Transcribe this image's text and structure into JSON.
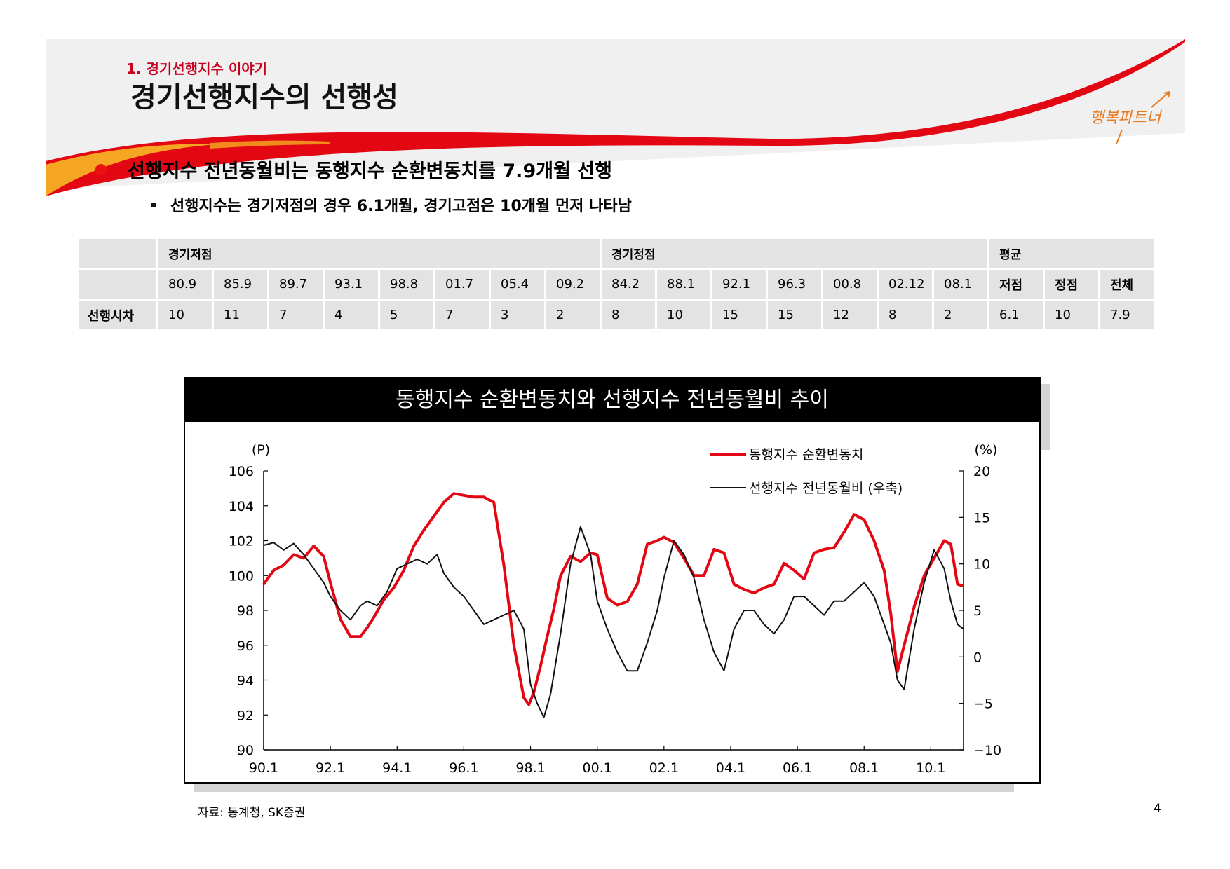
{
  "header": {
    "section": "1. 경기선행지수 이야기",
    "title": "경기선행지수의 선행성",
    "logo_text": "행복파트너"
  },
  "bullets": {
    "main": "선행지수 전년동월비는 동행지수 순환변동치를 7.9개월 선행",
    "sub": "선행지수는 경기저점의 경우 6.1개월, 경기고점은 10개월 먼저 나타남"
  },
  "colors": {
    "accent_red": "#e30613",
    "banner_orange": "#f5a623",
    "table_bg": "#e3e3e3"
  },
  "lead_table": {
    "group_trough": "경기저점",
    "group_peak": "경기정점",
    "group_avg": "평균",
    "row_label": "선행시차",
    "trough_dates": [
      "80.9",
      "85.9",
      "89.7",
      "93.1",
      "98.8",
      "01.7",
      "05.4",
      "09.2"
    ],
    "peak_dates": [
      "84.2",
      "88.1",
      "92.1",
      "96.3",
      "00.8",
      "02.12",
      "08.1"
    ],
    "avg_labels": [
      "저점",
      "정점",
      "전체"
    ],
    "trough_values": [
      "10",
      "11",
      "7",
      "4",
      "5",
      "7",
      "3",
      "2"
    ],
    "peak_values": [
      "8",
      "10",
      "15",
      "15",
      "12",
      "8",
      "2"
    ],
    "avg_values": [
      "6.1",
      "10",
      "7.9"
    ]
  },
  "chart_data": {
    "type": "line",
    "title": "동행지수 순환변동치와 선행지수 전년동월비 추이",
    "left_unit": "(P)",
    "right_unit": "(%)",
    "ylim_left": [
      90,
      106
    ],
    "ylim_right": [
      -10,
      20
    ],
    "yticks_left": [
      "106",
      "104",
      "102",
      "100",
      "98",
      "96",
      "94",
      "92",
      "90"
    ],
    "yticks_right": [
      "20",
      "15",
      "10",
      "5",
      "0",
      "−5",
      "−10"
    ],
    "xticks": [
      "90.1",
      "92.1",
      "94.1",
      "96.1",
      "98.1",
      "00.1",
      "02.1",
      "04.1",
      "06.1",
      "08.1",
      "10.1"
    ],
    "xlim": [
      1990.0,
      2010.98
    ],
    "legend_position": "top-right",
    "series": [
      {
        "name": "동행지수 순환변동치",
        "axis": "left",
        "color": "#e30613",
        "x": [
          1990.0,
          1990.3,
          1990.6,
          1990.9,
          1991.2,
          1991.5,
          1991.8,
          1992.0,
          1992.3,
          1992.6,
          1992.9,
          1993.1,
          1993.3,
          1993.6,
          1993.9,
          1994.2,
          1994.5,
          1994.8,
          1995.1,
          1995.4,
          1995.7,
          1996.0,
          1996.3,
          1996.6,
          1996.9,
          1997.2,
          1997.5,
          1997.8,
          1997.95,
          1998.1,
          1998.3,
          1998.5,
          1998.7,
          1998.9,
          1999.2,
          1999.5,
          1999.8,
          2000.0,
          2000.3,
          2000.6,
          2000.9,
          2001.2,
          2001.5,
          2001.8,
          2002.0,
          2002.3,
          2002.6,
          2002.9,
          2003.2,
          2003.5,
          2003.8,
          2004.1,
          2004.4,
          2004.7,
          2005.0,
          2005.3,
          2005.6,
          2005.9,
          2006.2,
          2006.5,
          2006.8,
          2007.1,
          2007.4,
          2007.7,
          2008.0,
          2008.3,
          2008.6,
          2008.8,
          2009.0,
          2009.2,
          2009.5,
          2009.8,
          2010.1,
          2010.4,
          2010.6,
          2010.8,
          2010.98
        ],
        "y": [
          99.5,
          100.3,
          100.6,
          101.2,
          101.0,
          101.7,
          101.1,
          99.6,
          97.5,
          96.5,
          96.5,
          97.0,
          97.6,
          98.6,
          99.3,
          100.3,
          101.7,
          102.6,
          103.4,
          104.2,
          104.7,
          104.6,
          104.5,
          104.5,
          104.2,
          100.6,
          96.0,
          93.0,
          92.6,
          93.3,
          94.8,
          96.5,
          98.1,
          100.0,
          101.1,
          100.8,
          101.3,
          101.2,
          98.7,
          98.3,
          98.5,
          99.5,
          101.8,
          102.0,
          102.2,
          101.9,
          101.0,
          100.0,
          100.0,
          101.5,
          101.3,
          99.5,
          99.2,
          99.0,
          99.3,
          99.5,
          100.7,
          100.3,
          99.8,
          101.3,
          101.5,
          101.6,
          102.5,
          103.5,
          103.2,
          102.0,
          100.3,
          97.8,
          94.5,
          96.0,
          98.2,
          100.0,
          101.0,
          102.0,
          101.8,
          99.5,
          99.4
        ]
      },
      {
        "name": "선행지수 전년동월비 (우축)",
        "axis": "right",
        "color": "#111111",
        "x": [
          1990.0,
          1990.3,
          1990.6,
          1990.9,
          1991.2,
          1991.5,
          1991.8,
          1992.0,
          1992.3,
          1992.6,
          1992.9,
          1993.1,
          1993.4,
          1993.7,
          1994.0,
          1994.3,
          1994.6,
          1994.9,
          1995.2,
          1995.4,
          1995.7,
          1996.0,
          1996.3,
          1996.6,
          1996.9,
          1997.2,
          1997.5,
          1997.8,
          1998.0,
          1998.2,
          1998.4,
          1998.6,
          1998.9,
          1999.2,
          1999.5,
          1999.8,
          2000.0,
          2000.3,
          2000.6,
          2000.9,
          2001.2,
          2001.5,
          2001.8,
          2002.0,
          2002.3,
          2002.6,
          2002.9,
          2003.2,
          2003.5,
          2003.8,
          2004.1,
          2004.4,
          2004.7,
          2005.0,
          2005.3,
          2005.6,
          2005.9,
          2006.2,
          2006.5,
          2006.8,
          2007.1,
          2007.4,
          2007.7,
          2008.0,
          2008.3,
          2008.6,
          2008.8,
          2009.0,
          2009.2,
          2009.5,
          2009.8,
          2010.1,
          2010.4,
          2010.6,
          2010.8,
          2010.98
        ],
        "y": [
          12.0,
          12.3,
          11.5,
          12.2,
          11.0,
          9.5,
          8.0,
          6.5,
          5.0,
          4.0,
          5.5,
          6.0,
          5.5,
          7.0,
          9.5,
          10.0,
          10.5,
          10.0,
          11.0,
          9.0,
          7.5,
          6.5,
          5.0,
          3.5,
          4.0,
          4.5,
          5.0,
          3.0,
          -3.0,
          -5.0,
          -6.5,
          -4.0,
          2.5,
          10.0,
          14.0,
          11.0,
          6.0,
          3.0,
          0.5,
          -1.5,
          -1.5,
          1.5,
          5.0,
          8.5,
          12.5,
          11.0,
          8.5,
          4.0,
          0.5,
          -1.5,
          3.0,
          5.0,
          5.0,
          3.5,
          2.5,
          4.0,
          6.5,
          6.5,
          5.5,
          4.5,
          6.0,
          6.0,
          7.0,
          8.0,
          6.5,
          3.5,
          1.5,
          -2.5,
          -3.5,
          3.0,
          8.0,
          11.5,
          9.5,
          6.0,
          3.5,
          3.0
        ]
      }
    ]
  },
  "footer": {
    "source": "자료: 통계청, SK증권",
    "page": "4"
  }
}
